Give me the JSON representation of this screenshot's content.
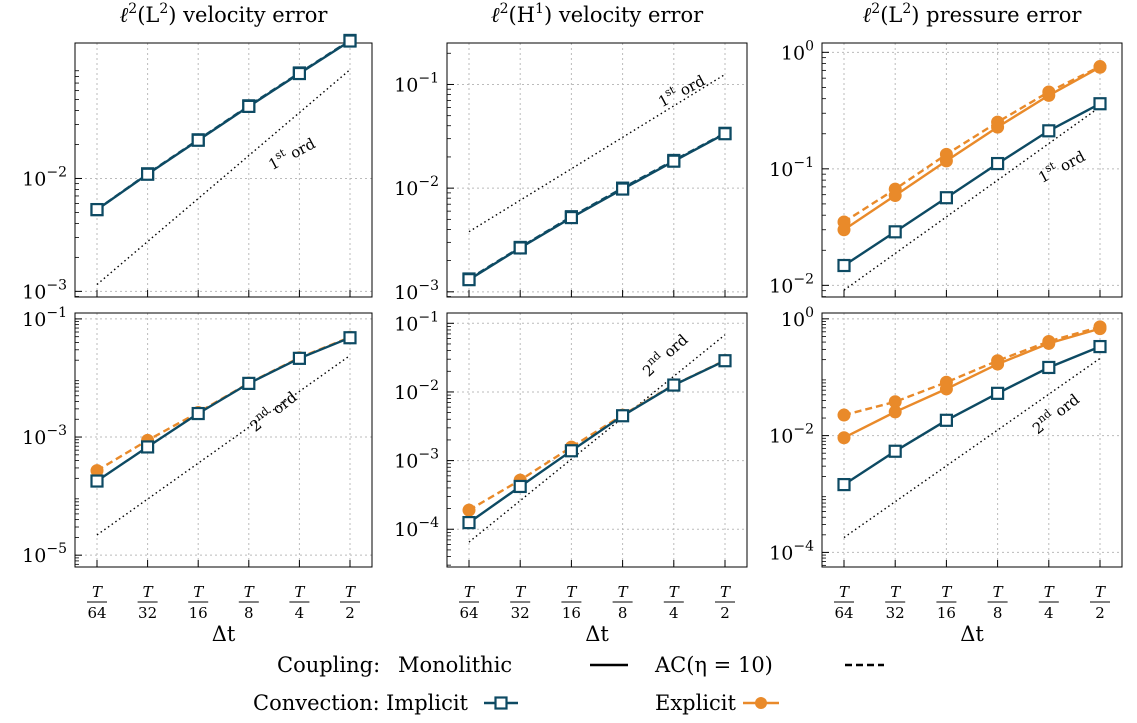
{
  "colors": {
    "implicit": "#0d4a63",
    "explicit": "#e98a2a",
    "guide": "#000000",
    "grid": "#bbbbbb"
  },
  "legend": {
    "coupling_label": "Coupling:",
    "monolithic_label": "Monolithic",
    "ac_label": "AC(η = 10)",
    "convection_label": "Convection:",
    "implicit_label": "Implicit",
    "explicit_label": "Explicit"
  },
  "chart_data": [
    {
      "type": "line",
      "scale": "log",
      "title_pre": "ℓ",
      "title_sup1": "2",
      "title_mid": "(L",
      "title_sup2": "2",
      "title_post": ") velocity error",
      "xlabel": "",
      "xticks": [
        "64",
        "32",
        "16",
        "8",
        "4",
        "2"
      ],
      "x_num": "T",
      "yticks": [
        {
          "base": "10",
          "exp": "−2",
          "v": -2
        },
        {
          "base": "10",
          "exp": "−3",
          "v": -3
        }
      ],
      "ylim_log10": [
        -3.05,
        -0.8
      ],
      "series": [
        {
          "conv": "implicit",
          "coupling": "monolithic",
          "values": [
            0.0053,
            0.0109,
            0.0218,
            0.0435,
            0.085,
            0.165
          ]
        },
        {
          "conv": "implicit",
          "coupling": "ac",
          "values": [
            0.0053,
            0.011,
            0.022,
            0.044,
            0.086,
            0.167
          ]
        }
      ],
      "guide": {
        "x": [
          0,
          5
        ],
        "y": [
          0.00115,
          0.092
        ]
      },
      "annotation": {
        "main": "1",
        "sup": "st",
        "rest": " ord",
        "at_x": 3.9,
        "at_y": 0.015,
        "angle": -28
      }
    },
    {
      "type": "line",
      "scale": "log",
      "title_pre": "ℓ",
      "title_sup1": "2",
      "title_mid": "(H",
      "title_sup2": "1",
      "title_post": ") velocity error",
      "xlabel": "",
      "xticks": [
        "64",
        "32",
        "16",
        "8",
        "4",
        "2"
      ],
      "x_num": "T",
      "yticks": [
        {
          "base": "10",
          "exp": "−1",
          "v": -1
        },
        {
          "base": "10",
          "exp": "−2",
          "v": -2
        },
        {
          "base": "10",
          "exp": "−3",
          "v": -3
        }
      ],
      "ylim_log10": [
        -3.05,
        -0.6
      ],
      "series": [
        {
          "conv": "implicit",
          "coupling": "monolithic",
          "values": [
            0.00131,
            0.00265,
            0.0052,
            0.0098,
            0.0182,
            0.0335
          ]
        },
        {
          "conv": "implicit",
          "coupling": "ac",
          "values": [
            0.00133,
            0.00268,
            0.0053,
            0.01,
            0.0185,
            0.0338
          ]
        }
      ],
      "guide": {
        "x": [
          0,
          5
        ],
        "y": [
          0.0038,
          0.125
        ]
      },
      "annotation": {
        "main": "1",
        "sup": "st",
        "rest": " ord",
        "at_x": 4.2,
        "at_y": 0.078,
        "angle": -28
      }
    },
    {
      "type": "line",
      "scale": "log",
      "title_pre": "ℓ",
      "title_sup1": "2",
      "title_mid": "(L",
      "title_sup2": "2",
      "title_post": ") pressure error",
      "xlabel": "Δt",
      "xticks": [
        "64",
        "32",
        "16",
        "8",
        "4",
        "2"
      ],
      "x_num": "T",
      "yticks": [
        {
          "base": "10",
          "exp": "0",
          "v": 0
        },
        {
          "base": "10",
          "exp": "−1",
          "v": -1
        },
        {
          "base": "10",
          "exp": "−2",
          "v": -2
        }
      ],
      "ylim_log10": [
        -2.1,
        0.08
      ],
      "series": [
        {
          "conv": "implicit",
          "coupling": "monolithic",
          "values": [
            0.0148,
            0.0288,
            0.0565,
            0.111,
            0.212,
            0.362
          ]
        },
        {
          "conv": "explicit",
          "coupling": "monolithic",
          "values": [
            0.03,
            0.059,
            0.117,
            0.228,
            0.427,
            0.745
          ]
        },
        {
          "conv": "explicit",
          "coupling": "ac",
          "values": [
            0.035,
            0.067,
            0.133,
            0.252,
            0.457,
            0.755
          ]
        }
      ],
      "guide": {
        "x": [
          0,
          5
        ],
        "y": [
          0.0091,
          0.34
        ]
      },
      "annotation": {
        "main": "1",
        "sup": "st",
        "rest": " ord",
        "at_x": 4.3,
        "at_y": 0.095,
        "angle": -28
      }
    },
    {
      "type": "line",
      "scale": "log",
      "xlabel": "Δt",
      "xticks": [
        "64",
        "32",
        "16",
        "8",
        "4",
        "2"
      ],
      "x_num": "T",
      "yticks": [
        {
          "base": "10",
          "exp": "−1",
          "v": -1
        },
        {
          "base": "10",
          "exp": "−3",
          "v": -3
        },
        {
          "base": "10",
          "exp": "−5",
          "v": -5
        }
      ],
      "ylim_log10": [
        -5.2,
        -0.9
      ],
      "series": [
        {
          "conv": "implicit",
          "coupling": "monolithic",
          "values": [
            0.00018,
            0.00068,
            0.0025,
            0.0081,
            0.0215,
            0.048
          ]
        },
        {
          "conv": "explicit",
          "coupling": "ac",
          "values": [
            0.00027,
            0.00088,
            0.0026,
            0.0082,
            0.022,
            0.049
          ]
        }
      ],
      "guide": {
        "x": [
          0,
          5
        ],
        "y": [
          2.2e-05,
          0.024
        ]
      },
      "annotation": {
        "main": "2",
        "sup": "nd",
        "rest": " ord",
        "at_x": 3.55,
        "at_y": 0.0023,
        "angle": -38
      }
    },
    {
      "type": "line",
      "scale": "log",
      "xlabel": "Δt",
      "xticks": [
        "64",
        "32",
        "16",
        "8",
        "4",
        "2"
      ],
      "x_num": "T",
      "yticks": [
        {
          "base": "10",
          "exp": "−1",
          "v": -1
        },
        {
          "base": "10",
          "exp": "−2",
          "v": -2
        },
        {
          "base": "10",
          "exp": "−3",
          "v": -3
        },
        {
          "base": "10",
          "exp": "−4",
          "v": -4
        }
      ],
      "ylim_log10": [
        -4.55,
        -0.85
      ],
      "series": [
        {
          "conv": "implicit",
          "coupling": "monolithic",
          "values": [
            0.000125,
            0.00042,
            0.00139,
            0.0045,
            0.0126,
            0.0285
          ]
        },
        {
          "conv": "explicit",
          "coupling": "ac",
          "values": [
            0.00019,
            0.00052,
            0.00157,
            0.0046,
            0.0127,
            0.0287
          ]
        }
      ],
      "guide": {
        "x": [
          0,
          5
        ],
        "y": [
          6.5e-05,
          0.068
        ]
      },
      "annotation": {
        "main": "2",
        "sup": "nd",
        "rest": " ord",
        "at_x": 3.9,
        "at_y": 0.03,
        "angle": -42
      }
    },
    {
      "type": "line",
      "scale": "log",
      "xlabel": "Δt",
      "xticks": [
        "64",
        "32",
        "16",
        "8",
        "4",
        "2"
      ],
      "x_num": "T",
      "yticks": [
        {
          "base": "10",
          "exp": "0",
          "v": 0
        },
        {
          "base": "10",
          "exp": "−2",
          "v": -2
        },
        {
          "base": "10",
          "exp": "−4",
          "v": -4
        }
      ],
      "ylim_log10": [
        -4.25,
        0.1
      ],
      "series": [
        {
          "conv": "implicit",
          "coupling": "monolithic",
          "values": [
            0.00145,
            0.0054,
            0.0183,
            0.053,
            0.147,
            0.335
          ]
        },
        {
          "conv": "explicit",
          "coupling": "monolithic",
          "values": [
            0.0092,
            0.0255,
            0.063,
            0.168,
            0.38,
            0.68
          ]
        },
        {
          "conv": "explicit",
          "coupling": "ac",
          "values": [
            0.0225,
            0.038,
            0.082,
            0.192,
            0.41,
            0.73
          ]
        }
      ],
      "guide": {
        "x": [
          0,
          5
        ],
        "y": [
          0.00018,
          0.21
        ]
      },
      "annotation": {
        "main": "2",
        "sup": "nd",
        "rest": " ord",
        "at_x": 4.2,
        "at_y": 0.02,
        "angle": -38
      }
    }
  ]
}
